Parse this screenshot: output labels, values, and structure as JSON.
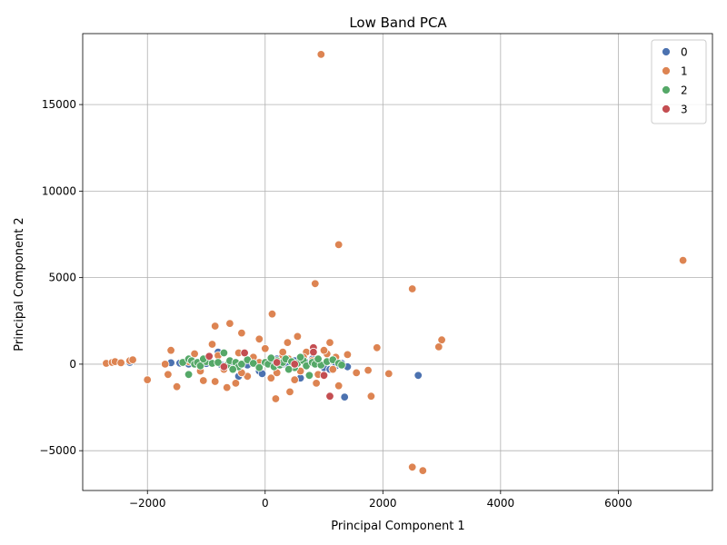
{
  "chart_data": {
    "type": "scatter",
    "title": "Low Band PCA",
    "xlabel": "Principal Component 1",
    "ylabel": "Principal Component 2",
    "xlim": [
      -3100,
      7600
    ],
    "ylim": [
      -7300,
      19100
    ],
    "xticks": [
      -2000,
      0,
      2000,
      4000,
      6000
    ],
    "yticks": [
      -5000,
      0,
      5000,
      10000,
      15000
    ],
    "grid": true,
    "legend_position": "top-right",
    "series": [
      {
        "name": "0",
        "color": "#4c72b0",
        "points": [
          [
            -2300,
            100
          ],
          [
            -1600,
            80
          ],
          [
            -1450,
            60
          ],
          [
            -1300,
            0
          ],
          [
            -1200,
            50
          ],
          [
            -1000,
            40
          ],
          [
            -800,
            700
          ],
          [
            -750,
            -30
          ],
          [
            -600,
            20
          ],
          [
            -450,
            -700
          ],
          [
            -300,
            -50
          ],
          [
            -200,
            120
          ],
          [
            -100,
            -400
          ],
          [
            -50,
            -550
          ],
          [
            100,
            50
          ],
          [
            200,
            300
          ],
          [
            300,
            0
          ],
          [
            400,
            -100
          ],
          [
            500,
            200
          ],
          [
            600,
            -800
          ],
          [
            700,
            100
          ],
          [
            800,
            300
          ],
          [
            900,
            80
          ],
          [
            1000,
            -200
          ],
          [
            1100,
            -300
          ],
          [
            1200,
            -100
          ],
          [
            1300,
            50
          ],
          [
            1350,
            -1900
          ],
          [
            1400,
            -150
          ],
          [
            2600,
            -650
          ]
        ]
      },
      {
        "name": "1",
        "color": "#dd8452",
        "points": [
          [
            950,
            17900
          ],
          [
            1250,
            6900
          ],
          [
            7100,
            6000
          ],
          [
            850,
            4650
          ],
          [
            2500,
            4350
          ],
          [
            120,
            2900
          ],
          [
            -600,
            2350
          ],
          [
            -850,
            2200
          ],
          [
            -400,
            1800
          ],
          [
            550,
            1600
          ],
          [
            3000,
            1400
          ],
          [
            -100,
            1450
          ],
          [
            380,
            1250
          ],
          [
            1100,
            1250
          ],
          [
            -900,
            1150
          ],
          [
            2950,
            1000
          ],
          [
            1900,
            950
          ],
          [
            -1600,
            800
          ],
          [
            1400,
            550
          ],
          [
            1050,
            600
          ],
          [
            -450,
            650
          ],
          [
            700,
            700
          ],
          [
            -200,
            400
          ],
          [
            300,
            500
          ],
          [
            -2700,
            50
          ],
          [
            -2600,
            100
          ],
          [
            -2550,
            150
          ],
          [
            -2450,
            80
          ],
          [
            -2300,
            200
          ],
          [
            -2250,
            250
          ],
          [
            -1650,
            -600
          ],
          [
            -2000,
            -900
          ],
          [
            -1500,
            -1300
          ],
          [
            -1050,
            -950
          ],
          [
            -850,
            -1000
          ],
          [
            -650,
            -1350
          ],
          [
            -500,
            -1100
          ],
          [
            -300,
            -700
          ],
          [
            180,
            -2000
          ],
          [
            420,
            -1600
          ],
          [
            870,
            -1100
          ],
          [
            1250,
            -1250
          ],
          [
            1550,
            -500
          ],
          [
            1750,
            -350
          ],
          [
            2100,
            -550
          ],
          [
            1800,
            -1850
          ],
          [
            2500,
            -5950
          ],
          [
            2680,
            -6150
          ],
          [
            -1300,
            150
          ],
          [
            -1000,
            300
          ],
          [
            -700,
            -300
          ],
          [
            -100,
            100
          ],
          [
            100,
            -800
          ],
          [
            200,
            -500
          ],
          [
            400,
            300
          ],
          [
            600,
            -400
          ],
          [
            800,
            200
          ],
          [
            900,
            -600
          ],
          [
            1200,
            400
          ],
          [
            -1100,
            -400
          ],
          [
            -1700,
            0
          ],
          [
            -800,
            500
          ],
          [
            500,
            -900
          ],
          [
            1000,
            800
          ],
          [
            -400,
            -500
          ],
          [
            0,
            900
          ],
          [
            650,
            400
          ],
          [
            1150,
            -300
          ],
          [
            -1200,
            600
          ],
          [
            300,
            700
          ]
        ]
      },
      {
        "name": "2",
        "color": "#55a868",
        "points": [
          [
            -1400,
            100
          ],
          [
            -1300,
            300
          ],
          [
            -1250,
            200
          ],
          [
            -1200,
            0
          ],
          [
            -1150,
            100
          ],
          [
            -1100,
            -100
          ],
          [
            -1000,
            150
          ],
          [
            -900,
            50
          ],
          [
            -800,
            100
          ],
          [
            -700,
            650
          ],
          [
            -650,
            -50
          ],
          [
            -600,
            200
          ],
          [
            -500,
            100
          ],
          [
            -450,
            -150
          ],
          [
            -400,
            0
          ],
          [
            -300,
            250
          ],
          [
            -200,
            50
          ],
          [
            -100,
            -200
          ],
          [
            0,
            100
          ],
          [
            50,
            0
          ],
          [
            150,
            -150
          ],
          [
            200,
            200
          ],
          [
            250,
            -50
          ],
          [
            300,
            100
          ],
          [
            350,
            300
          ],
          [
            450,
            150
          ],
          [
            500,
            -200
          ],
          [
            550,
            50
          ],
          [
            650,
            200
          ],
          [
            700,
            -100
          ],
          [
            750,
            -650
          ],
          [
            800,
            100
          ],
          [
            850,
            0
          ],
          [
            950,
            -50
          ],
          [
            1050,
            150
          ],
          [
            1150,
            250
          ],
          [
            1250,
            50
          ],
          [
            1300,
            -50
          ],
          [
            -1300,
            -600
          ],
          [
            -1050,
            300
          ],
          [
            600,
            400
          ],
          [
            400,
            -300
          ],
          [
            -550,
            -300
          ],
          [
            100,
            350
          ],
          [
            900,
            300
          ]
        ]
      },
      {
        "name": "3",
        "color": "#c44e52",
        "points": [
          [
            -350,
            650
          ],
          [
            -950,
            450
          ],
          [
            820,
            950
          ],
          [
            820,
            700
          ],
          [
            1100,
            -1850
          ],
          [
            1000,
            -650
          ],
          [
            -700,
            -150
          ],
          [
            200,
            100
          ],
          [
            500,
            0
          ]
        ]
      }
    ]
  }
}
